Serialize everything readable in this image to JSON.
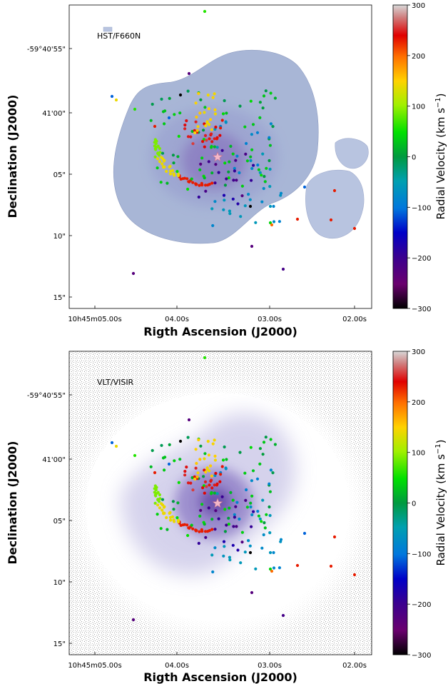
{
  "chart_data": [
    {
      "type": "scatter",
      "panel_label": "HST/F660N",
      "background": "nebula-blue",
      "xlabel": "Rigth Ascension (J2000)",
      "ylabel": "Declination (J2000)",
      "x_ticks": [
        "10h45m05.00s",
        "04.00s",
        "03.00s",
        "02.00s"
      ],
      "y_ticks": [
        "-59°40'55\"",
        "41'00\"",
        "05\"",
        "10\"",
        "15\""
      ],
      "colorbar": {
        "label": "Radial Velocity (km s",
        "label_sup": "−1",
        "label_end": ")",
        "ticks": [
          "300",
          "200",
          "100",
          "0",
          "−100",
          "−200",
          "−300"
        ],
        "range": [
          -300,
          300
        ]
      }
    },
    {
      "type": "scatter",
      "panel_label": "VLT/VISIR",
      "background": "nebula-purple",
      "xlabel": "Rigth Ascension (J2000)",
      "ylabel": "Declination (J2000)",
      "x_ticks": [
        "10h45m05.00s",
        "04.00s",
        "03.00s",
        "02.00s"
      ],
      "y_ticks": [
        "-59°40'55\"",
        "41'00\"",
        "05\"",
        "10\"",
        "15\""
      ],
      "colorbar": {
        "label": "Radial Velocity (km s",
        "label_sup": "−1",
        "label_end": ")",
        "ticks": [
          "300",
          "200",
          "100",
          "0",
          "−100",
          "−200",
          "−300"
        ],
        "range": [
          -300,
          300
        ]
      }
    }
  ]
}
